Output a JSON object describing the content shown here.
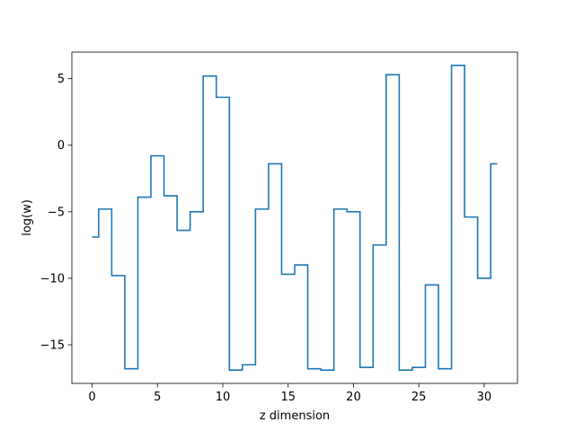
{
  "chart_data": {
    "type": "line",
    "step": "mid",
    "title": "",
    "xlabel": "z dimension",
    "ylabel": "log(w)",
    "xlim": [
      -1.55,
      32.55
    ],
    "ylim": [
      -17.9,
      7.0
    ],
    "xticks": [
      0,
      5,
      10,
      15,
      20,
      25,
      30
    ],
    "yticks": [
      -15,
      -10,
      -5,
      0,
      5
    ],
    "ytick_labels": [
      "−15",
      "−10",
      "−5",
      "0",
      "5"
    ],
    "grid": false,
    "legend": "none",
    "series": [
      {
        "color": "#1f77b4",
        "x": [
          0,
          1,
          2,
          3,
          4,
          5,
          6,
          7,
          8,
          9,
          10,
          11,
          12,
          13,
          14,
          15,
          16,
          17,
          18,
          19,
          20,
          21,
          22,
          23,
          24,
          25,
          26,
          27,
          28,
          29,
          30,
          31
        ],
        "y": [
          -6.9,
          -4.8,
          -9.8,
          -16.8,
          -3.9,
          -0.8,
          -3.8,
          -6.4,
          -5.0,
          5.2,
          3.6,
          -16.9,
          -16.5,
          -4.8,
          -1.4,
          -9.7,
          -9.0,
          -16.8,
          -16.9,
          -4.8,
          -5.0,
          -16.7,
          -7.5,
          5.3,
          -16.9,
          -16.7,
          -10.5,
          -16.8,
          6.0,
          -5.4,
          -10.0,
          -1.4
        ]
      }
    ]
  }
}
